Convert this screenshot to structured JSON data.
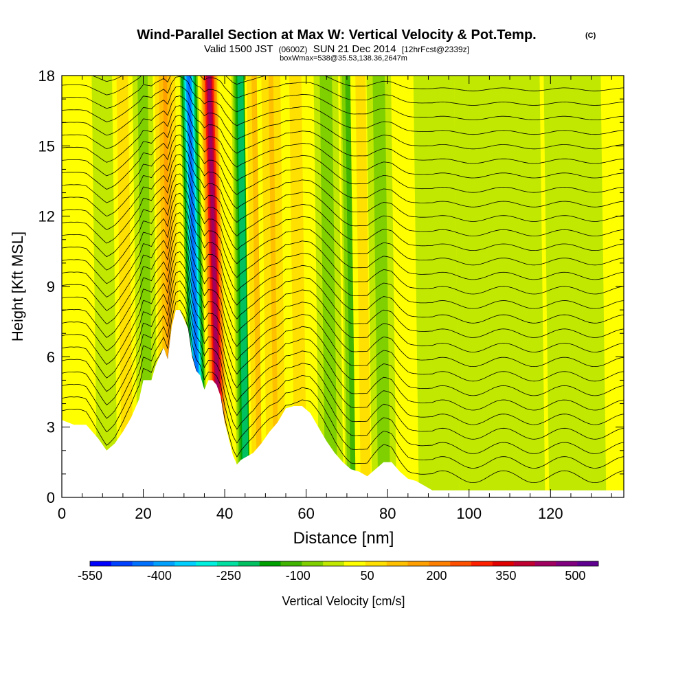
{
  "chart_data": {
    "type": "heatmap",
    "title": "Wind-Parallel Section at Max W: Vertical Velocity & Pot.Temp.",
    "copyright_mark": "(C)",
    "subtitle_parts": [
      "Valid 1500 JST",
      "(0600Z)",
      "SUN 21 Dec 2014",
      "[12hrFcst@2339z]"
    ],
    "subtitle2": "boxWmax=538@35.53,138.36,2647m",
    "xlabel": "Distance [nm]",
    "ylabel": "Height [Kft MSL]",
    "xlim": [
      0,
      138
    ],
    "ylim": [
      0,
      18
    ],
    "x_ticks": [
      0,
      20,
      40,
      60,
      80,
      100,
      120
    ],
    "y_ticks": [
      0,
      3,
      6,
      9,
      12,
      15,
      18
    ],
    "colorbar": {
      "label": "Vertical Velocity [cm/s]",
      "range": [
        -550,
        550
      ],
      "tick_values": [
        -550,
        -400,
        -250,
        -100,
        50,
        200,
        350,
        500
      ],
      "colors": [
        "#0000ff",
        "#0040ff",
        "#0070ff",
        "#00a0ff",
        "#00d0ff",
        "#00f0e0",
        "#00e0a0",
        "#00c060",
        "#00a000",
        "#40b400",
        "#80d000",
        "#c0e800",
        "#ffff00",
        "#ffe000",
        "#ffc000",
        "#ffa000",
        "#ff8000",
        "#ff5000",
        "#ff2000",
        "#e00000",
        "#c00030",
        "#a00060",
        "#800080",
        "#600090"
      ]
    },
    "contour_variable": "Potential temperature",
    "terrain_profile": [
      [
        0,
        3.3
      ],
      [
        3,
        3.1
      ],
      [
        6,
        3.1
      ],
      [
        9,
        2.5
      ],
      [
        11,
        2
      ],
      [
        13,
        2.3
      ],
      [
        15,
        2.8
      ],
      [
        17,
        3.4
      ],
      [
        19,
        4.2
      ],
      [
        20,
        5
      ],
      [
        22,
        5
      ],
      [
        23,
        5.6
      ],
      [
        25,
        6.4
      ],
      [
        26,
        5.9
      ],
      [
        27,
        7.3
      ],
      [
        28,
        8
      ],
      [
        29,
        8
      ],
      [
        30,
        7.6
      ],
      [
        31,
        7.2
      ],
      [
        32,
        6
      ],
      [
        33,
        5.4
      ],
      [
        34,
        5.2
      ],
      [
        35,
        4.6
      ],
      [
        36,
        5
      ],
      [
        37,
        5
      ],
      [
        38,
        4.8
      ],
      [
        39,
        4.3
      ],
      [
        40,
        3.2
      ],
      [
        41,
        2.5
      ],
      [
        42,
        1.8
      ],
      [
        43,
        1.4
      ],
      [
        44,
        1.6
      ],
      [
        45,
        1.7
      ],
      [
        47,
        1.9
      ],
      [
        49,
        2.3
      ],
      [
        51,
        2.8
      ],
      [
        53,
        3.2
      ],
      [
        55,
        3.8
      ],
      [
        57,
        3.9
      ],
      [
        59,
        3.9
      ],
      [
        61,
        3.6
      ],
      [
        63,
        3
      ],
      [
        65,
        2.4
      ],
      [
        67,
        1.9
      ],
      [
        69,
        1.5
      ],
      [
        71,
        1.2
      ],
      [
        73,
        1.1
      ],
      [
        75,
        0.9
      ],
      [
        77,
        1.2
      ],
      [
        79,
        1.5
      ],
      [
        81,
        1.5
      ],
      [
        83,
        1.1
      ],
      [
        85,
        0.8
      ],
      [
        87,
        0.7
      ],
      [
        89,
        0.5
      ],
      [
        91,
        0.3
      ],
      [
        100,
        0.3
      ],
      [
        110,
        0.3
      ],
      [
        120,
        0.3
      ],
      [
        138,
        0.3
      ]
    ],
    "velocity_bands": [
      {
        "x": 32.5,
        "w": 2.2,
        "v": -520
      },
      {
        "x": 37.5,
        "w": 2.2,
        "v": 520
      },
      {
        "x": 15.5,
        "w": 2.8,
        "v": 100
      },
      {
        "x": 10.5,
        "w": 2.5,
        "v": -50
      },
      {
        "x": 20.5,
        "w": 2.5,
        "v": -90
      },
      {
        "x": 26.0,
        "w": 3.0,
        "v": 180
      },
      {
        "x": 44.5,
        "w": 2.2,
        "v": -260
      },
      {
        "x": 49.0,
        "w": 3.5,
        "v": 180
      },
      {
        "x": 52.0,
        "w": 3.5,
        "v": 120
      },
      {
        "x": 58.0,
        "w": 3.0,
        "v": 100
      },
      {
        "x": 65.5,
        "w": 3.0,
        "v": -90
      },
      {
        "x": 71.5,
        "w": 2.5,
        "v": -160
      },
      {
        "x": 74.0,
        "w": 2.5,
        "v": 90
      },
      {
        "x": 78.5,
        "w": 3.0,
        "v": -80
      },
      {
        "x": 92.0,
        "w": 5.0,
        "v": -30
      },
      {
        "x": 103.0,
        "w": 6.0,
        "v": -40
      },
      {
        "x": 112.0,
        "w": 6.0,
        "v": -50
      },
      {
        "x": 126.0,
        "w": 7.0,
        "v": -40
      }
    ]
  }
}
